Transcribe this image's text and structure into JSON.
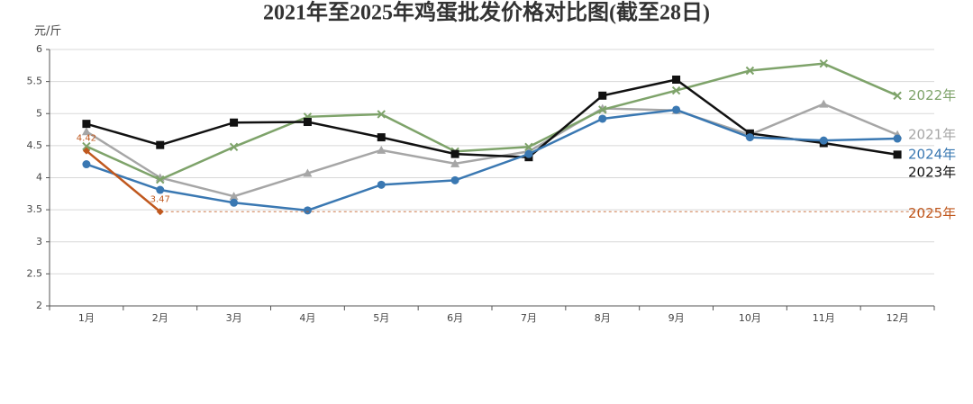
{
  "chart_data": {
    "type": "line",
    "title": "2021年至2025年鸡蛋批发价格对比图(截至28日)",
    "y_label": "元/斤",
    "categories": [
      "1月",
      "2月",
      "3月",
      "4月",
      "5月",
      "6月",
      "7月",
      "8月",
      "9月",
      "10月",
      "11月",
      "12月"
    ],
    "ylim": [
      2,
      6
    ],
    "yticks": [
      2,
      2.5,
      3,
      3.5,
      4,
      4.5,
      5,
      5.5,
      6
    ],
    "grid": true,
    "series": [
      {
        "name": "2021年",
        "color": "#a6a6a6",
        "marker": "triangle",
        "values": [
          4.72,
          4.0,
          3.71,
          4.07,
          4.43,
          4.22,
          4.41,
          5.08,
          5.05,
          4.67,
          5.15,
          4.67
        ]
      },
      {
        "name": "2022年",
        "color": "#7ea36a",
        "marker": "x",
        "values": [
          4.49,
          3.97,
          4.48,
          4.95,
          4.99,
          4.41,
          4.48,
          5.06,
          5.36,
          5.67,
          5.78,
          5.28
        ]
      },
      {
        "name": "2023年",
        "color": "#111111",
        "marker": "square",
        "values": [
          4.84,
          4.51,
          4.86,
          4.87,
          4.63,
          4.37,
          4.32,
          5.28,
          5.53,
          4.69,
          4.54,
          4.36
        ]
      },
      {
        "name": "2024年",
        "color": "#3a78b2",
        "marker": "circle",
        "values": [
          4.21,
          3.81,
          3.61,
          3.49,
          3.89,
          3.96,
          4.37,
          4.92,
          5.06,
          4.63,
          4.58,
          4.61
        ]
      },
      {
        "name": "2025年",
        "color": "#c0581e",
        "marker": "diamond",
        "data_labels": true,
        "reference_line": true,
        "values": [
          4.42,
          3.47,
          null,
          null,
          null,
          null,
          null,
          null,
          null,
          null,
          null,
          null
        ]
      }
    ]
  }
}
